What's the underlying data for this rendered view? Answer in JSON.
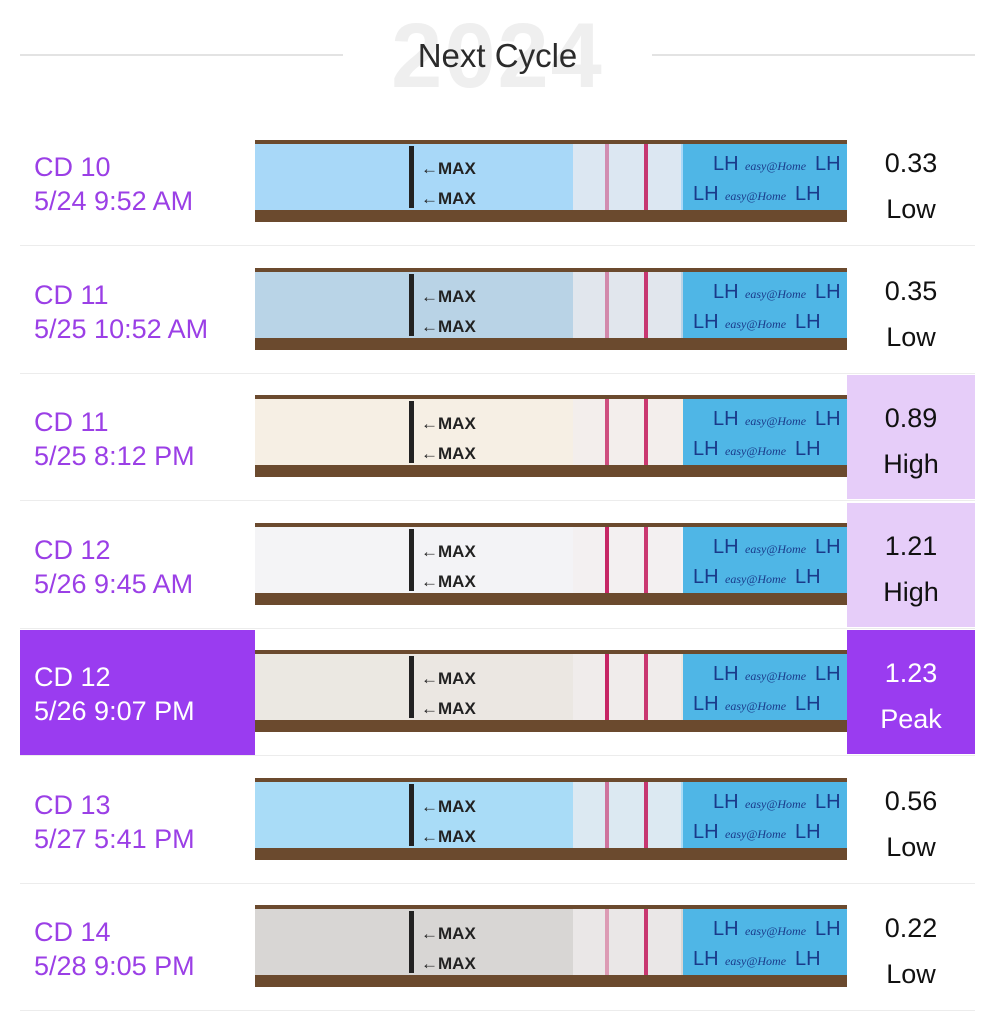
{
  "header": {
    "title": "Next Cycle",
    "watermark": "2024"
  },
  "strip_labels": {
    "max": "←MAX",
    "lh": "LH",
    "brand": "easy@Home"
  },
  "colors": {
    "accent": "#9a3cf0",
    "accent_light": "#e6cdf9",
    "line": "#c2185b"
  },
  "entries": [
    {
      "cd": "CD 10",
      "datetime": "5/24 9:52 AM",
      "value": "0.33",
      "level": "Low",
      "bg": "#a8d8f8",
      "line_intensity": 0.33
    },
    {
      "cd": "CD 11",
      "datetime": "5/25 10:52 AM",
      "value": "0.35",
      "level": "Low",
      "bg": "#b9d3e6",
      "line_intensity": 0.35
    },
    {
      "cd": "CD 11",
      "datetime": "5/25 8:12 PM",
      "value": "0.89",
      "level": "High",
      "bg": "#f6efe4",
      "line_intensity": 0.89
    },
    {
      "cd": "CD 12",
      "datetime": "5/26 9:45 AM",
      "value": "1.21",
      "level": "High",
      "bg": "#f3f3f6",
      "line_intensity": 1.21
    },
    {
      "cd": "CD 12",
      "datetime": "5/26 9:07 PM",
      "value": "1.23",
      "level": "Peak",
      "bg": "#ebe7e2",
      "line_intensity": 1.23
    },
    {
      "cd": "CD 13",
      "datetime": "5/27 5:41 PM",
      "value": "0.56",
      "level": "Low",
      "bg": "#a9dcf7",
      "line_intensity": 0.56
    },
    {
      "cd": "CD 14",
      "datetime": "5/28 9:05 PM",
      "value": "0.22",
      "level": "Low",
      "bg": "#d8d6d4",
      "line_intensity": 0.22
    }
  ]
}
